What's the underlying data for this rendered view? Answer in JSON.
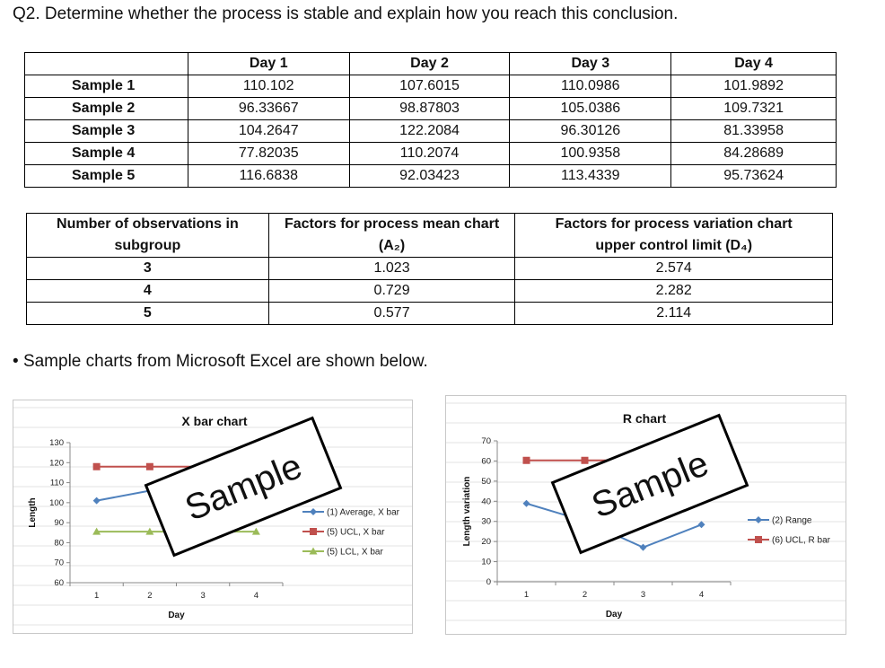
{
  "question": "Q2. Determine whether the process is stable and explain how you reach this conclusion.",
  "samples_table": {
    "headers": [
      "",
      "Day 1",
      "Day 2",
      "Day 3",
      "Day 4"
    ],
    "rows": [
      {
        "label": "Sample 1",
        "values": [
          "110.102",
          "107.6015",
          "110.0986",
          "101.9892"
        ]
      },
      {
        "label": "Sample 2",
        "values": [
          "96.33667",
          "98.87803",
          "105.0386",
          "109.7321"
        ]
      },
      {
        "label": "Sample 3",
        "values": [
          "104.2647",
          "122.2084",
          "96.30126",
          "81.33958"
        ]
      },
      {
        "label": "Sample 4",
        "values": [
          "77.82035",
          "110.2074",
          "100.9358",
          "84.28689"
        ]
      },
      {
        "label": "Sample 5",
        "values": [
          "116.6838",
          "92.03423",
          "113.4339",
          "95.73624"
        ]
      }
    ]
  },
  "factors_table": {
    "headers": [
      "Number of observations in subgroup",
      "Factors for process mean chart (A₂)",
      "Factors for process variation chart upper control limit (D₄)"
    ],
    "rows": [
      [
        "3",
        "1.023",
        "2.574"
      ],
      [
        "4",
        "0.729",
        "2.282"
      ],
      [
        "5",
        "0.577",
        "2.114"
      ]
    ]
  },
  "bullet": "Sample charts from Microsoft Excel are shown below.",
  "chart_data": [
    {
      "type": "line",
      "title": "X bar chart",
      "xlabel": "Day",
      "ylabel": "Length",
      "x": [
        1,
        2,
        3,
        4
      ],
      "ylim": [
        60,
        130
      ],
      "yticks": [
        60,
        70,
        80,
        90,
        100,
        110,
        120,
        130
      ],
      "series": [
        {
          "name": "(1) Average, X bar",
          "values": [
            101,
            106,
            105,
            94.6
          ],
          "color": "#4f81bd",
          "marker": "diamond"
        },
        {
          "name": "(5) UCL, X bar",
          "values": [
            118,
            118,
            118,
            118
          ],
          "color": "#c0504d",
          "marker": "square"
        },
        {
          "name": "(5) LCL, X bar",
          "values": [
            85.5,
            85.5,
            85.5,
            85.5
          ],
          "color": "#9bbb59",
          "marker": "triangle"
        }
      ],
      "watermark": "Sample"
    },
    {
      "type": "line",
      "title": "R chart",
      "xlabel": "Day",
      "ylabel": "Length variation",
      "x": [
        1,
        2,
        3,
        4
      ],
      "ylim": [
        0,
        70
      ],
      "yticks": [
        0,
        10,
        20,
        30,
        40,
        50,
        60,
        70
      ],
      "series": [
        {
          "name": "(2) Range",
          "values": [
            38.9,
            30.2,
            17.1,
            28.4
          ],
          "color": "#4f81bd",
          "marker": "diamond"
        },
        {
          "name": "(6) UCL, R bar",
          "values": [
            60.3,
            60.3,
            60.3,
            60.3
          ],
          "color": "#c0504d",
          "marker": "square"
        }
      ],
      "watermark": "Sample"
    }
  ]
}
